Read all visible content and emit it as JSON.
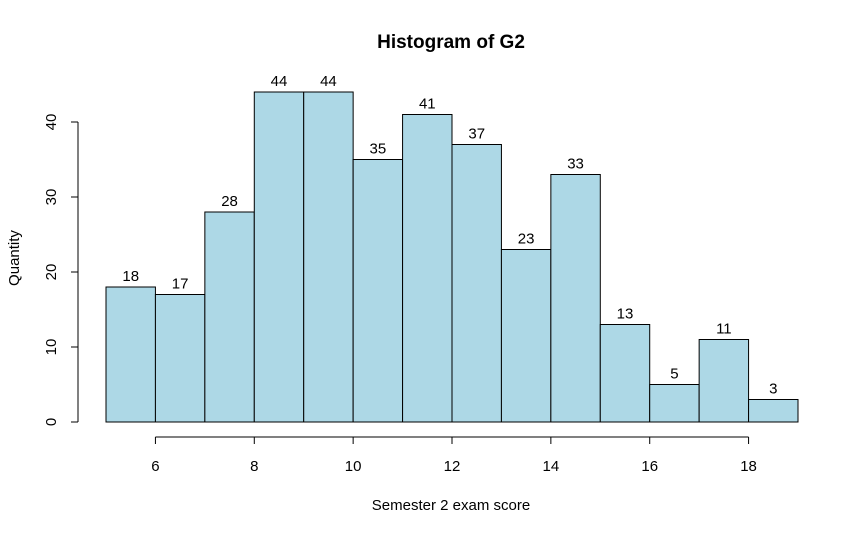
{
  "chart_data": {
    "type": "bar",
    "title": "Histogram of G2",
    "xlabel": "Semester 2 exam score",
    "ylabel": "Quantity",
    "bin_edges": [
      5,
      6,
      7,
      8,
      9,
      10,
      11,
      12,
      13,
      14,
      15,
      16,
      17,
      18,
      19
    ],
    "values": [
      18,
      17,
      28,
      44,
      44,
      35,
      41,
      37,
      23,
      33,
      13,
      5,
      11,
      3
    ],
    "x_ticks": [
      6,
      8,
      10,
      12,
      14,
      16,
      18
    ],
    "y_ticks": [
      0,
      10,
      20,
      30,
      40
    ],
    "xlim": [
      5,
      19
    ],
    "ylim": [
      0,
      44
    ],
    "bar_color": "#add8e6",
    "grid": false
  }
}
